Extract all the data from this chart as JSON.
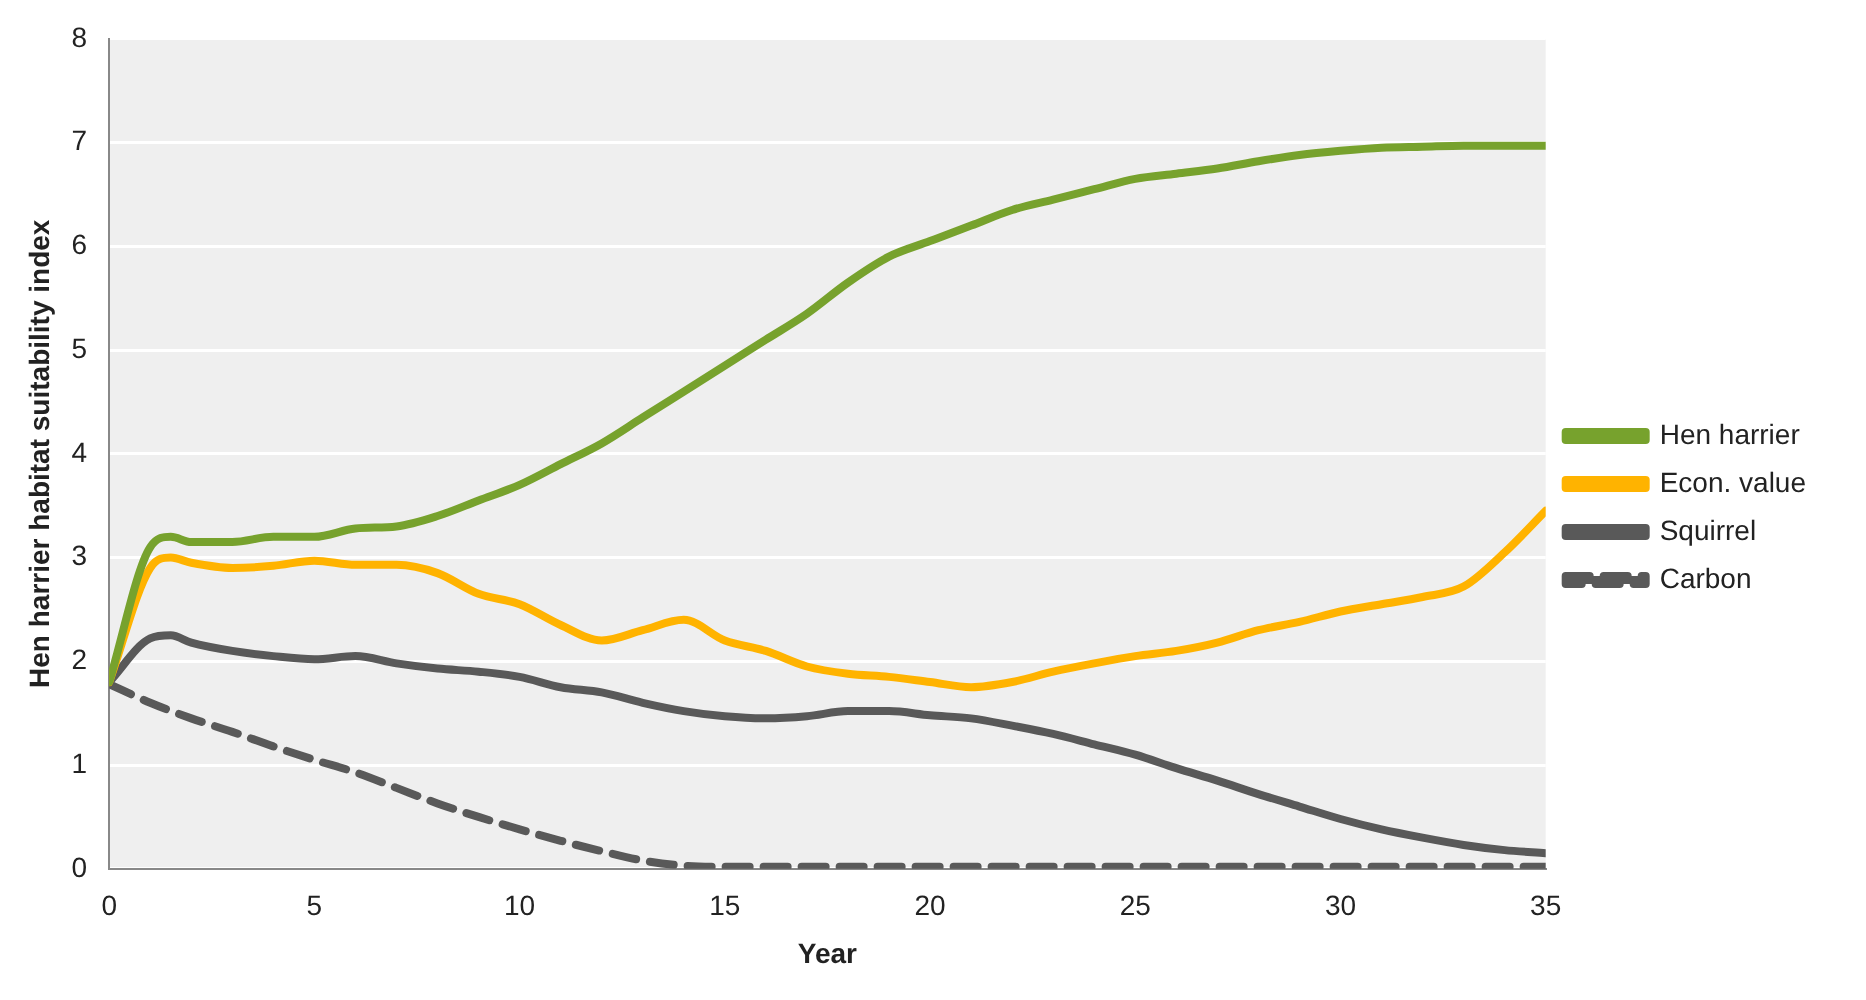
{
  "chart_data": {
    "type": "line",
    "xlabel": "Year",
    "ylabel": "Hen harrier habitat suitability index",
    "xlim": [
      0,
      35
    ],
    "xticks": [
      0,
      5,
      10,
      15,
      20,
      25,
      30,
      35
    ],
    "ylim": [
      0,
      8
    ],
    "yticks": [
      0,
      1,
      2,
      3,
      4,
      5,
      6,
      7,
      8
    ],
    "grid": "y",
    "legend": "right",
    "marker": "none",
    "series": [
      {
        "name": "Hen harrier",
        "color": "#77a22d",
        "line_style": "solid",
        "x": [
          0,
          1,
          1.5,
          2,
          3,
          4,
          5,
          6,
          7,
          8,
          9,
          10,
          11,
          12,
          13,
          14,
          15,
          16,
          17,
          18,
          19,
          20,
          21,
          22,
          23,
          24,
          25,
          26,
          27,
          28,
          29,
          30,
          31,
          32,
          33,
          34,
          35
        ],
        "values": [
          1.8,
          3.1,
          3.2,
          3.15,
          3.15,
          3.2,
          3.2,
          3.28,
          3.3,
          3.4,
          3.55,
          3.7,
          3.9,
          4.1,
          4.35,
          4.6,
          4.85,
          5.1,
          5.35,
          5.65,
          5.9,
          6.05,
          6.2,
          6.35,
          6.45,
          6.55,
          6.65,
          6.7,
          6.75,
          6.82,
          6.88,
          6.92,
          6.95,
          6.96,
          6.97,
          6.97,
          6.97
        ]
      },
      {
        "name": "Econ. value",
        "color": "#ffb300",
        "line_style": "solid",
        "x": [
          0,
          1,
          1.5,
          2,
          3,
          4,
          5,
          6,
          7,
          8,
          9,
          10,
          11,
          12,
          13,
          14,
          15,
          16,
          17,
          18,
          19,
          20,
          21,
          22,
          23,
          24,
          25,
          26,
          27,
          28,
          29,
          30,
          31,
          32,
          33,
          34,
          35
        ],
        "values": [
          1.8,
          2.9,
          3.0,
          2.95,
          2.9,
          2.92,
          2.97,
          2.93,
          2.93,
          2.85,
          2.65,
          2.55,
          2.35,
          2.2,
          2.3,
          2.4,
          2.2,
          2.1,
          1.95,
          1.88,
          1.85,
          1.8,
          1.75,
          1.8,
          1.9,
          1.98,
          2.05,
          2.1,
          2.18,
          2.3,
          2.38,
          2.48,
          2.55,
          2.62,
          2.72,
          3.05,
          3.45
        ]
      },
      {
        "name": "Squirrel",
        "color": "#595959",
        "line_style": "solid",
        "x": [
          0,
          1,
          1.5,
          2,
          3,
          4,
          5,
          6,
          7,
          8,
          9,
          10,
          11,
          12,
          13,
          14,
          15,
          16,
          17,
          18,
          19,
          20,
          21,
          22,
          23,
          24,
          25,
          26,
          27,
          28,
          29,
          30,
          31,
          32,
          33,
          34,
          35
        ],
        "values": [
          1.8,
          2.22,
          2.25,
          2.18,
          2.1,
          2.05,
          2.02,
          2.05,
          1.98,
          1.93,
          1.9,
          1.85,
          1.75,
          1.7,
          1.6,
          1.52,
          1.47,
          1.45,
          1.47,
          1.52,
          1.52,
          1.48,
          1.45,
          1.38,
          1.3,
          1.2,
          1.1,
          0.97,
          0.85,
          0.72,
          0.6,
          0.48,
          0.38,
          0.3,
          0.23,
          0.18,
          0.15
        ]
      },
      {
        "name": "Carbon",
        "color": "#595959",
        "line_style": "dashed",
        "x": [
          0,
          1,
          2,
          3,
          4,
          5,
          6,
          7,
          8,
          9,
          10,
          11,
          12,
          13,
          14,
          15,
          20,
          25,
          30,
          35
        ],
        "values": [
          1.78,
          1.6,
          1.45,
          1.32,
          1.18,
          1.05,
          0.93,
          0.78,
          0.63,
          0.5,
          0.38,
          0.27,
          0.17,
          0.08,
          0.03,
          0.02,
          0.02,
          0.02,
          0.02,
          0.02
        ]
      }
    ]
  }
}
